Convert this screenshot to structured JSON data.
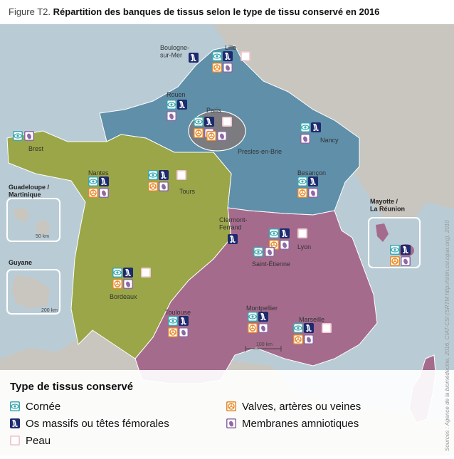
{
  "figure": {
    "label": "Figure T2.",
    "title": "Répartition des banques de tissus selon le type de tissu conservé en 2016"
  },
  "colors": {
    "north_region": "#5f8fa9",
    "west_region": "#9aa647",
    "south_region": "#a56b8d",
    "paris_region": "#7b7b80",
    "land": "#c9c6bf",
    "sea": "#b9ccd6",
    "cornea": "#3aa8b0",
    "bone": "#1d2a6e",
    "valves": "#e58a2b",
    "membranes": "#8e6aa4",
    "skin": "#f0c8d0"
  },
  "cities": {
    "boulogne": "Boulogne-\nsur-Mer",
    "lille": "Lille",
    "rouen": "Rouen",
    "paris": "Paris",
    "presles": "Presles-en-Brie",
    "brest": "Brest",
    "nancy": "Nancy",
    "nantes": "Nantes",
    "tours": "Tours",
    "besancon": "Besançon",
    "clermont": "Clermont-\nFerrand",
    "lyon": "Lyon",
    "saint_etienne": "Saint-Étienne",
    "bordeaux": "Bordeaux",
    "toulouse": "Toulouse",
    "montpellier": "Montpellier",
    "marseille": "Marseille"
  },
  "territories": {
    "guadeloupe": "Guadeloupe /\nMartinique",
    "guyane": "Guyane",
    "mayotte": "Mayotte /\nLa Réunion"
  },
  "scales": {
    "main": "100 km",
    "guadeloupe": "50 km",
    "guyane": "200 km"
  },
  "legend": {
    "title": "Type de tissus conservé",
    "items": [
      {
        "icon": "eye-icon",
        "label": "Cornée"
      },
      {
        "icon": "bone-icon",
        "label": "Os massifs ou têtes fémorales"
      },
      {
        "icon": "skin-icon",
        "label": "Peau"
      },
      {
        "icon": "valve-icon",
        "label": "Valves, artères ou veines"
      },
      {
        "icon": "membrane-icon",
        "label": "Membranes amniotiques"
      }
    ]
  },
  "source": "Sources : Agence de la biomédecine, 2016, CIAT-CSI (SRTM http://srtm.csi.cgiar.org), 2010",
  "banks": [
    {
      "city": "Boulogne-sur-Mer",
      "tissues": [
        "bone"
      ]
    },
    {
      "city": "Lille",
      "tissues": [
        "cornea",
        "bone",
        "skin",
        "valves",
        "membranes"
      ]
    },
    {
      "city": "Rouen",
      "tissues": [
        "cornea",
        "bone",
        "membranes"
      ]
    },
    {
      "city": "Paris",
      "tissues": [
        "cornea",
        "bone",
        "skin",
        "valves",
        "membranes"
      ]
    },
    {
      "city": "Presles-en-Brie",
      "tissues": [
        "valves",
        "membranes"
      ]
    },
    {
      "city": "Brest",
      "tissues": [
        "cornea",
        "membranes"
      ]
    },
    {
      "city": "Nancy",
      "tissues": [
        "cornea",
        "bone",
        "membranes"
      ]
    },
    {
      "city": "Nantes",
      "tissues": [
        "cornea",
        "bone",
        "valves",
        "membranes"
      ]
    },
    {
      "city": "Tours",
      "tissues": [
        "cornea",
        "bone",
        "skin",
        "valves",
        "membranes"
      ]
    },
    {
      "city": "Besançon",
      "tissues": [
        "cornea",
        "bone",
        "valves",
        "membranes"
      ]
    },
    {
      "city": "Clermont-Ferrand",
      "tissues": [
        "bone"
      ]
    },
    {
      "city": "Lyon",
      "tissues": [
        "cornea",
        "bone",
        "skin",
        "valves",
        "membranes"
      ]
    },
    {
      "city": "Saint-Étienne",
      "tissues": [
        "cornea",
        "membranes"
      ]
    },
    {
      "city": "Bordeaux",
      "tissues": [
        "cornea",
        "bone",
        "skin",
        "valves",
        "membranes"
      ]
    },
    {
      "city": "Toulouse",
      "tissues": [
        "cornea",
        "bone",
        "valves",
        "membranes"
      ]
    },
    {
      "city": "Montpellier",
      "tissues": [
        "cornea",
        "bone",
        "valves",
        "membranes"
      ]
    },
    {
      "city": "Marseille",
      "tissues": [
        "cornea",
        "bone",
        "skin",
        "valves",
        "membranes"
      ]
    },
    {
      "city": "Mayotte / La Réunion",
      "tissues": [
        "cornea",
        "bone",
        "valves",
        "membranes"
      ]
    }
  ]
}
